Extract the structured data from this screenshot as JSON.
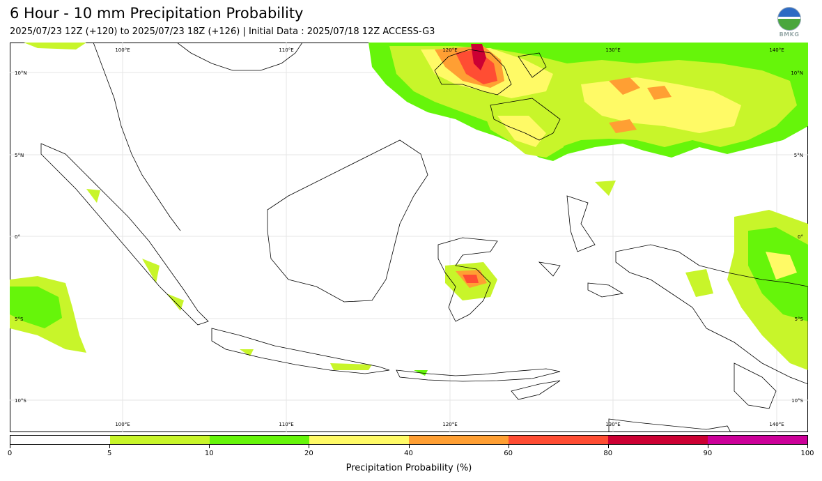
{
  "title": "6 Hour - 10 mm Precipitation Probability",
  "subtitle": "2025/07/23 12Z (+120) to 2025/07/23 18Z (+126) | Initial Data : 2025/07/18 12Z ACCESS-G3",
  "logo_text": "BMKG",
  "map": {
    "lon_labels": [
      "100°E",
      "110°E",
      "120°E",
      "130°E",
      "140°E"
    ],
    "lat_labels": [
      "10°N",
      "5°N",
      "0°",
      "5°S",
      "10°S"
    ]
  },
  "colorbar": {
    "title": "Precipitation Probability (%)",
    "ticks": [
      "0",
      "5",
      "10",
      "20",
      "40",
      "60",
      "80",
      "90",
      "100"
    ],
    "colors": [
      "#ffffff",
      "#c8f52a",
      "#66f50a",
      "#fffa66",
      "#ff9f33",
      "#ff4d33",
      "#cc0033",
      "#cc0099"
    ]
  }
}
